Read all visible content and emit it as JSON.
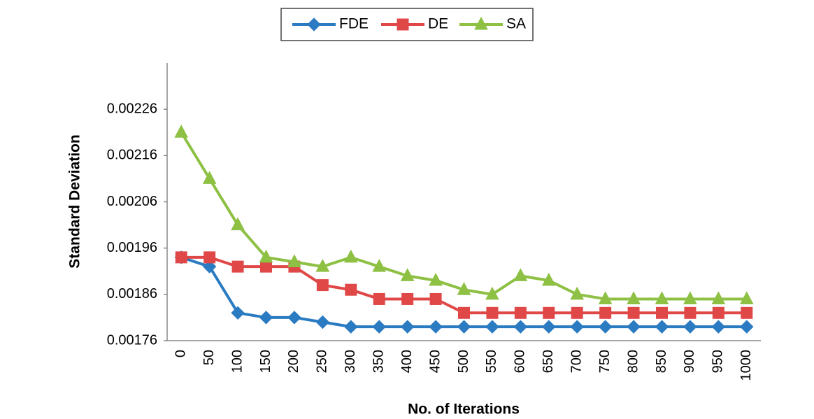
{
  "chart_data": {
    "type": "line",
    "x_label": "No. of Iterations",
    "y_label": "Standard Deviation",
    "categories": [
      "0",
      "50",
      "100",
      "150",
      "200",
      "250",
      "300",
      "350",
      "400",
      "450",
      "500",
      "550",
      "600",
      "650",
      "700",
      "750",
      "800",
      "850",
      "900",
      "950",
      "1000"
    ],
    "series": [
      {
        "name": "FDE",
        "color": "#2a7bc1",
        "marker": "diamond",
        "values": [
          0.00194,
          0.00192,
          0.00182,
          0.00181,
          0.00181,
          0.0018,
          0.00179,
          0.00179,
          0.00179,
          0.00179,
          0.00179,
          0.00179,
          0.00179,
          0.00179,
          0.00179,
          0.00179,
          0.00179,
          0.00179,
          0.00179,
          0.00179,
          0.00179
        ]
      },
      {
        "name": "DE",
        "color": "#e04848",
        "marker": "square",
        "values": [
          0.00194,
          0.00194,
          0.00192,
          0.00192,
          0.00192,
          0.00188,
          0.00187,
          0.00185,
          0.00185,
          0.00185,
          0.00182,
          0.00182,
          0.00182,
          0.00182,
          0.00182,
          0.00182,
          0.00182,
          0.00182,
          0.00182,
          0.00182,
          0.00182
        ]
      },
      {
        "name": "SA",
        "color": "#8dc043",
        "marker": "triangle",
        "values": [
          0.00221,
          0.00211,
          0.00201,
          0.00194,
          0.00193,
          0.00192,
          0.00194,
          0.00192,
          0.0019,
          0.00189,
          0.00187,
          0.00186,
          0.0019,
          0.00189,
          0.00186,
          0.00185,
          0.00185,
          0.00185,
          0.00185,
          0.00185,
          0.00185
        ]
      }
    ],
    "ylim": [
      0.00176,
      0.00236
    ],
    "yticks": [
      0.00176,
      0.00186,
      0.00196,
      0.00206,
      0.00216,
      0.00226
    ],
    "legend": "top"
  }
}
